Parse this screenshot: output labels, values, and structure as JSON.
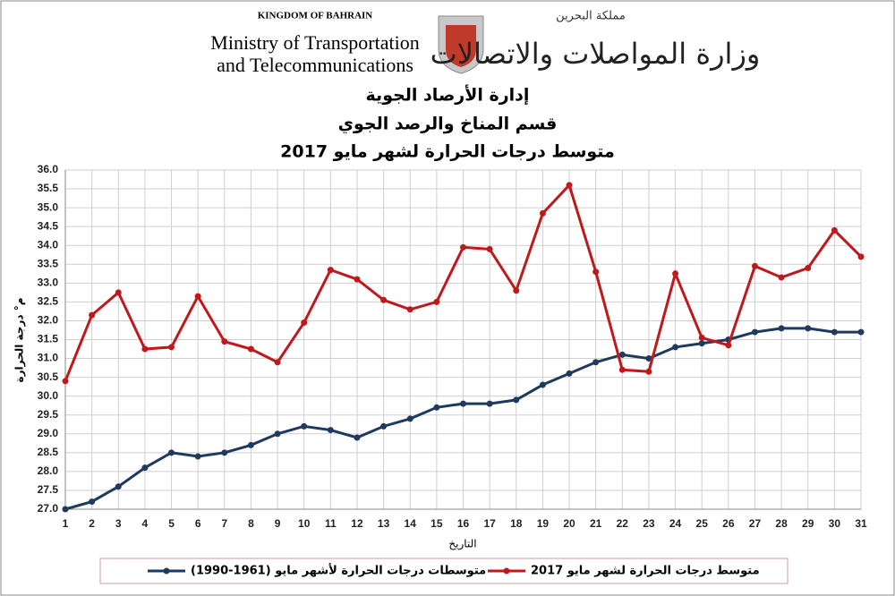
{
  "header": {
    "kingdom": "KINGDOM OF BAHRAIN",
    "ministry_en_1": "Ministry of Transportation",
    "ministry_en_2": "and Telecommunications",
    "kingdom_ar": "مملكة البحرين",
    "ministry_ar": "وزارة المواصلات والاتصالات",
    "department": "إدارة الأرصاد الجوية",
    "section": "قسم المناخ والرصد الجوي"
  },
  "chart_data": {
    "type": "line",
    "title": "متوسط درجات الحرارة لشهر مايو 2017",
    "y_label": "م° درجة الحرارة",
    "x_label": "التاريخ",
    "categories": [
      1,
      2,
      3,
      4,
      5,
      6,
      7,
      8,
      9,
      10,
      11,
      12,
      13,
      14,
      15,
      16,
      17,
      18,
      19,
      20,
      21,
      22,
      23,
      24,
      25,
      26,
      27,
      28,
      29,
      30,
      31
    ],
    "series": [
      {
        "name": "متوسطات درجات الحرارة لأشهر مايو (1961-1990)",
        "color": "#1f3a5f",
        "values": [
          27.0,
          27.2,
          27.6,
          28.1,
          28.5,
          28.4,
          28.5,
          28.7,
          29.0,
          29.2,
          29.1,
          28.9,
          29.2,
          29.4,
          29.7,
          29.8,
          29.8,
          29.9,
          30.3,
          30.6,
          30.9,
          31.1,
          31.0,
          31.3,
          31.4,
          31.5,
          31.7,
          31.8,
          31.8,
          31.7,
          31.7
        ]
      },
      {
        "name": "متوسط درجات الحرارة لشهر مايو 2017",
        "color": "#c0191b",
        "values": [
          30.4,
          32.15,
          32.75,
          31.25,
          31.3,
          32.65,
          31.45,
          31.25,
          30.9,
          31.95,
          33.35,
          33.1,
          32.55,
          32.3,
          32.5,
          33.95,
          33.9,
          32.8,
          34.85,
          35.6,
          33.3,
          30.7,
          30.65,
          33.25,
          31.55,
          31.35,
          33.45,
          33.15,
          33.4,
          34.4,
          33.7
        ]
      }
    ],
    "ylim": [
      27.0,
      36.0
    ],
    "yticks": [
      {
        "value": 27,
        "label": "27.0"
      },
      27.5,
      {
        "value": 28,
        "label": "28.0"
      },
      28.5,
      {
        "value": 29,
        "label": "29.0"
      },
      29.5,
      {
        "value": 30,
        "label": "30.0"
      },
      30.5,
      {
        "value": 31,
        "label": "31.0"
      },
      31.5,
      {
        "value": 32,
        "label": "32.0"
      },
      32.5,
      {
        "value": 33,
        "label": "33.0"
      },
      33.5,
      {
        "value": 34,
        "label": "34.0"
      },
      34.5,
      {
        "value": 35,
        "label": "35.0"
      },
      35.5,
      {
        "value": 36,
        "label": "36.0"
      }
    ],
    "grid": true
  }
}
